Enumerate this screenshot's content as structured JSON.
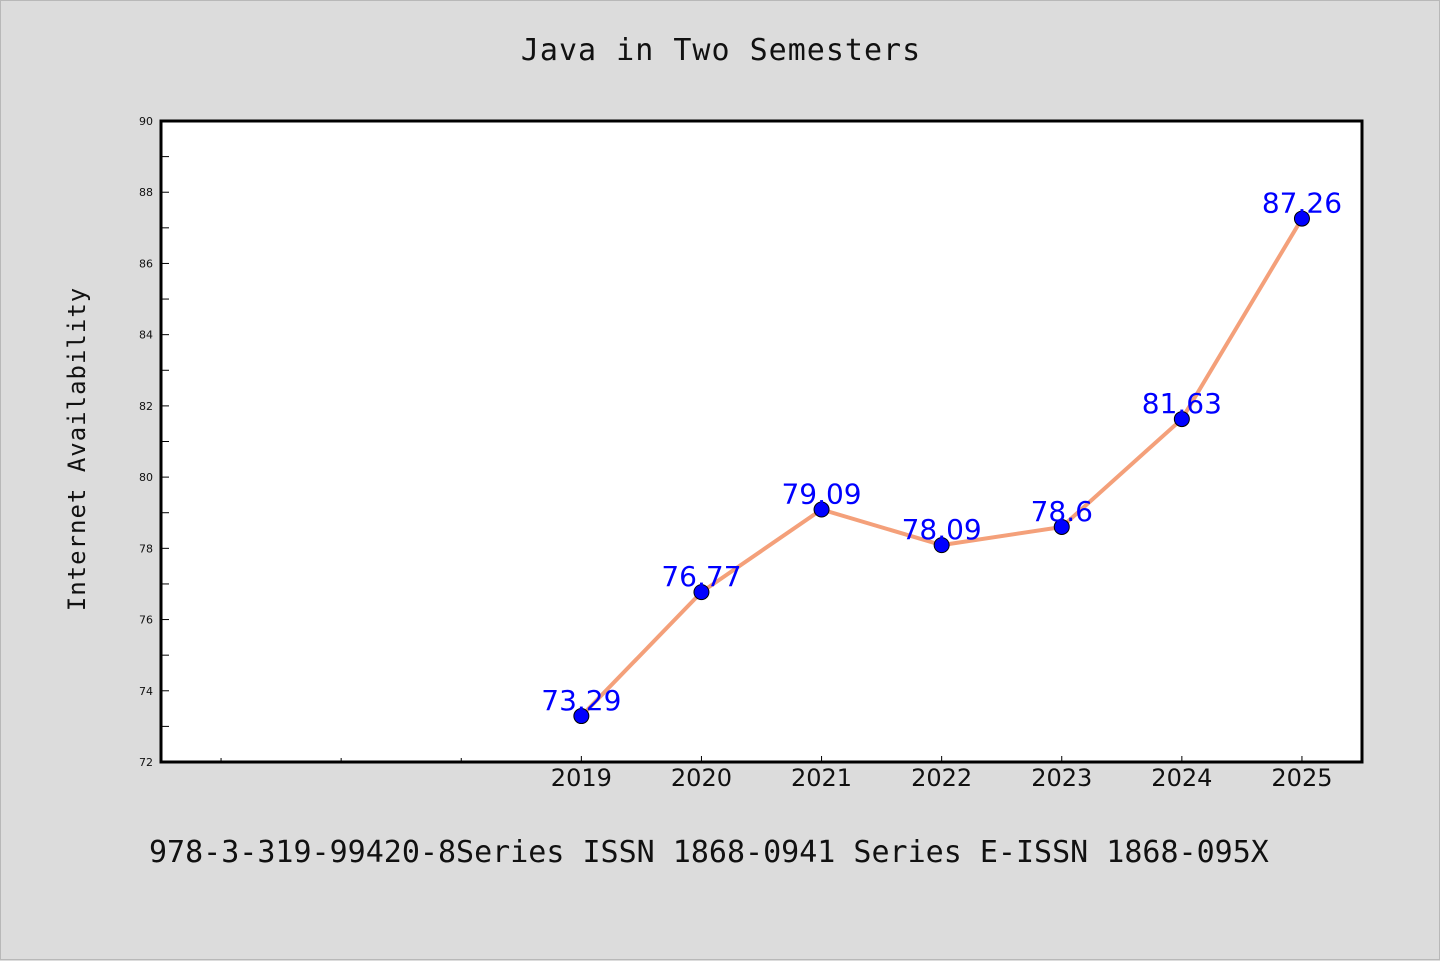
{
  "chart_data": {
    "type": "line",
    "title": "Java in Two Semesters",
    "xlabel": "",
    "ylabel": "Internet Availability",
    "x": [
      2019,
      2020,
      2021,
      2022,
      2023,
      2024,
      2025
    ],
    "x_extra_ticks": [
      2016,
      2017,
      2018
    ],
    "x_tick_labels": [
      "2019",
      "2020",
      "2021",
      "2022",
      "2023",
      "2024",
      "2025"
    ],
    "values": [
      73.29,
      76.77,
      79.09,
      78.09,
      78.6,
      81.63,
      87.26
    ],
    "data_labels": [
      "73.29",
      "76.77",
      "79.09",
      "78.09",
      "78.6",
      "81.63",
      "87.26"
    ],
    "xlim": [
      2015.5,
      2025.5
    ],
    "ylim": [
      72,
      90
    ],
    "y_ticks": [
      72,
      74,
      76,
      78,
      80,
      82,
      84,
      86,
      88,
      90
    ],
    "y_tick_labels": [
      "72",
      "74",
      "76",
      "78",
      "80",
      "82",
      "84",
      "86",
      "88",
      "90"
    ],
    "grid": false,
    "line_color": "#f4a07a",
    "marker_color": "#0000ff",
    "label_color": "#0000ff"
  },
  "footer": "978-3-319-99420-8Series ISSN 1868-0941 Series E-ISSN 1868-095X"
}
